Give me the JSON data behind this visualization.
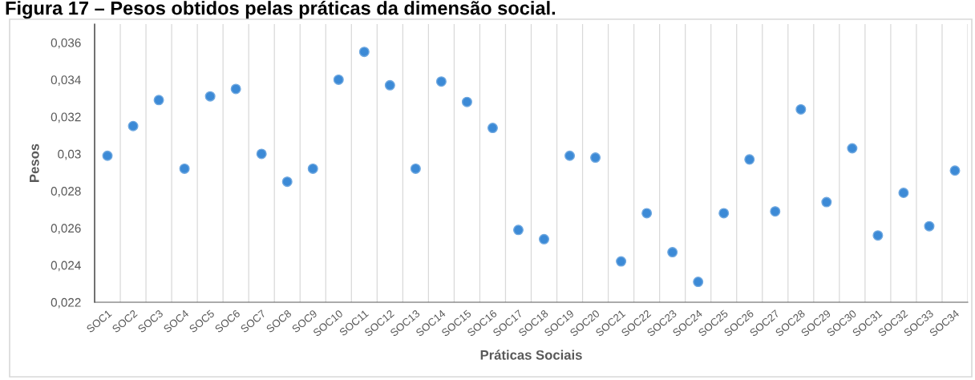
{
  "chart_data": {
    "type": "scatter",
    "title": "Figura 17 – Pesos obtidos pelas práticas da dimensão social.",
    "xlabel": "Práticas Sociais",
    "ylabel": "Pesos",
    "categories": [
      "SOC1",
      "SOC2",
      "SOC3",
      "SOC4",
      "SOC5",
      "SOC6",
      "SOC7",
      "SOC8",
      "SOC9",
      "SOC10",
      "SOC11",
      "SOC12",
      "SOC13",
      "SOC14",
      "SOC15",
      "SOC16",
      "SOC17",
      "SOC18",
      "SOC19",
      "SOC20",
      "SOC21",
      "SOC22",
      "SOC23",
      "SOC24",
      "SOC25",
      "SOC26",
      "SOC27",
      "SOC28",
      "SOC29",
      "SOC30",
      "SOC31",
      "SOC32",
      "SOC33",
      "SOC34"
    ],
    "series": [
      {
        "color": "#3c8ad6",
        "values": [
          0.0299,
          0.0315,
          0.0329,
          0.0292,
          0.0331,
          0.0335,
          0.03,
          0.0285,
          0.0292,
          0.034,
          0.0355,
          0.0337,
          0.0292,
          0.0339,
          0.0328,
          0.0314,
          0.0259,
          0.0254,
          0.0299,
          0.0298,
          0.0242,
          0.0268,
          0.0247,
          0.0231,
          0.0268,
          0.0297,
          0.0269,
          0.0324,
          0.0274,
          0.0303,
          0.0256,
          0.0279,
          0.0261,
          0.0291
        ]
      }
    ],
    "ylim": [
      0.022,
      0.037
    ],
    "yticks": [
      {
        "value": 0.022,
        "label": "0,022"
      },
      {
        "value": 0.024,
        "label": "0,024"
      },
      {
        "value": 0.026,
        "label": "0,026"
      },
      {
        "value": 0.028,
        "label": "0,028"
      },
      {
        "value": 0.03,
        "label": "0,03"
      },
      {
        "value": 0.032,
        "label": "0,032"
      },
      {
        "value": 0.034,
        "label": "0,034"
      },
      {
        "value": 0.036,
        "label": "0,036"
      }
    ],
    "grid": "x",
    "marker": "circle",
    "legend": false
  }
}
